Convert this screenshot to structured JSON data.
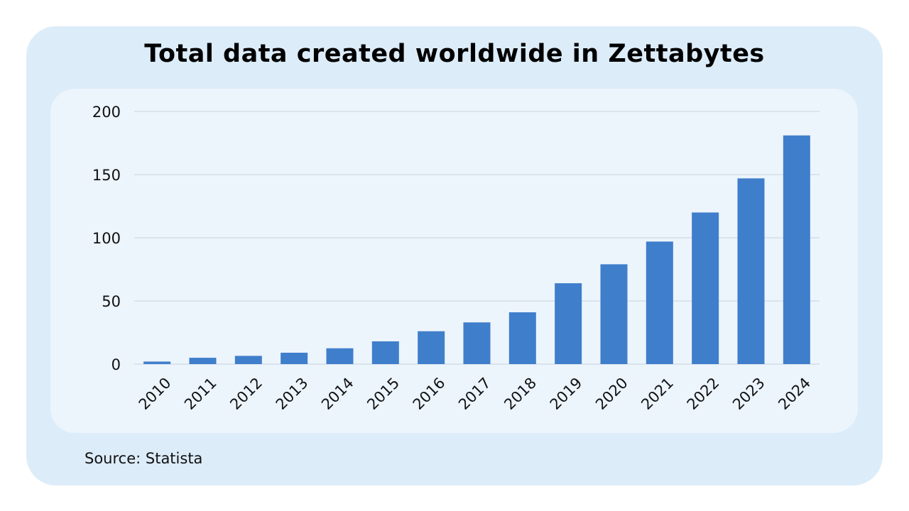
{
  "chart_data": {
    "type": "bar",
    "title": "Total data created worldwide in Zettabytes",
    "xlabel": "",
    "ylabel": "",
    "categories": [
      "2010",
      "2011",
      "2012",
      "2013",
      "2014",
      "2015",
      "2016",
      "2017",
      "2018",
      "2019",
      "2020",
      "2021",
      "2022",
      "2023",
      "2024"
    ],
    "series": [
      {
        "values": [
          2,
          5,
          6.5,
          9,
          12.5,
          18,
          26,
          33,
          41,
          64,
          79,
          97,
          120,
          147,
          181
        ]
      }
    ],
    "ylim": [
      0,
      200
    ],
    "yticks": [
      "0",
      "50",
      "100",
      "150",
      "200"
    ],
    "grid": true,
    "legend": "none",
    "bar_color": "#3f7ecb",
    "grid_color": "#c9d3de"
  },
  "source": "Source: Statista",
  "colors": {
    "outer_background": "#dcecf9",
    "inner_background": "#ecf4fc"
  }
}
